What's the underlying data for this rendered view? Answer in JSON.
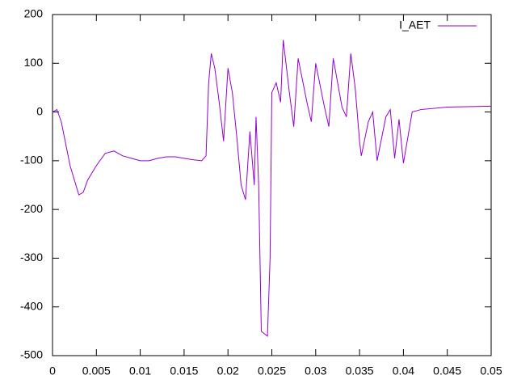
{
  "chart_data": {
    "type": "line",
    "x": [
      0,
      0.0005,
      0.001,
      0.002,
      0.003,
      0.0035,
      0.004,
      0.005,
      0.006,
      0.007,
      0.008,
      0.009,
      0.01,
      0.011,
      0.012,
      0.013,
      0.014,
      0.015,
      0.016,
      0.017,
      0.0175,
      0.0178,
      0.0181,
      0.0185,
      0.019,
      0.0195,
      0.02,
      0.0205,
      0.021,
      0.0215,
      0.022,
      0.0225,
      0.023,
      0.0232,
      0.0235,
      0.0238,
      0.0245,
      0.0248,
      0.025,
      0.0255,
      0.026,
      0.0263,
      0.027,
      0.0275,
      0.028,
      0.029,
      0.0295,
      0.03,
      0.031,
      0.0315,
      0.032,
      0.033,
      0.0335,
      0.034,
      0.0345,
      0.035,
      0.0352,
      0.036,
      0.0365,
      0.037,
      0.038,
      0.0385,
      0.039,
      0.0395,
      0.04,
      0.041,
      0.042,
      0.045,
      0.05
    ],
    "series": [
      {
        "name": "I_AET",
        "color": "#9400d3",
        "values": [
          0,
          5,
          -20,
          -110,
          -170,
          -165,
          -140,
          -110,
          -85,
          -80,
          -90,
          -95,
          -100,
          -100,
          -95,
          -92,
          -92,
          -95,
          -98,
          -100,
          -90,
          60,
          120,
          90,
          20,
          -60,
          90,
          40,
          -50,
          -150,
          -180,
          -40,
          -150,
          -10,
          -150,
          -450,
          -460,
          -300,
          40,
          60,
          20,
          148,
          40,
          -30,
          110,
          20,
          -20,
          100,
          10,
          -30,
          110,
          10,
          -10,
          120,
          50,
          -60,
          -90,
          -20,
          0,
          -100,
          -10,
          5,
          -95,
          -15,
          -105,
          0,
          5,
          10,
          12
        ]
      }
    ],
    "xlim": [
      0,
      0.05
    ],
    "xticks": [
      0,
      0.005,
      0.01,
      0.015,
      0.02,
      0.025,
      0.03,
      0.035,
      0.04,
      0.045,
      0.05
    ],
    "ylim": [
      -500,
      200
    ],
    "yticks": [
      -500,
      -400,
      -300,
      -200,
      -100,
      0,
      100,
      200
    ],
    "legend": "top-right"
  }
}
